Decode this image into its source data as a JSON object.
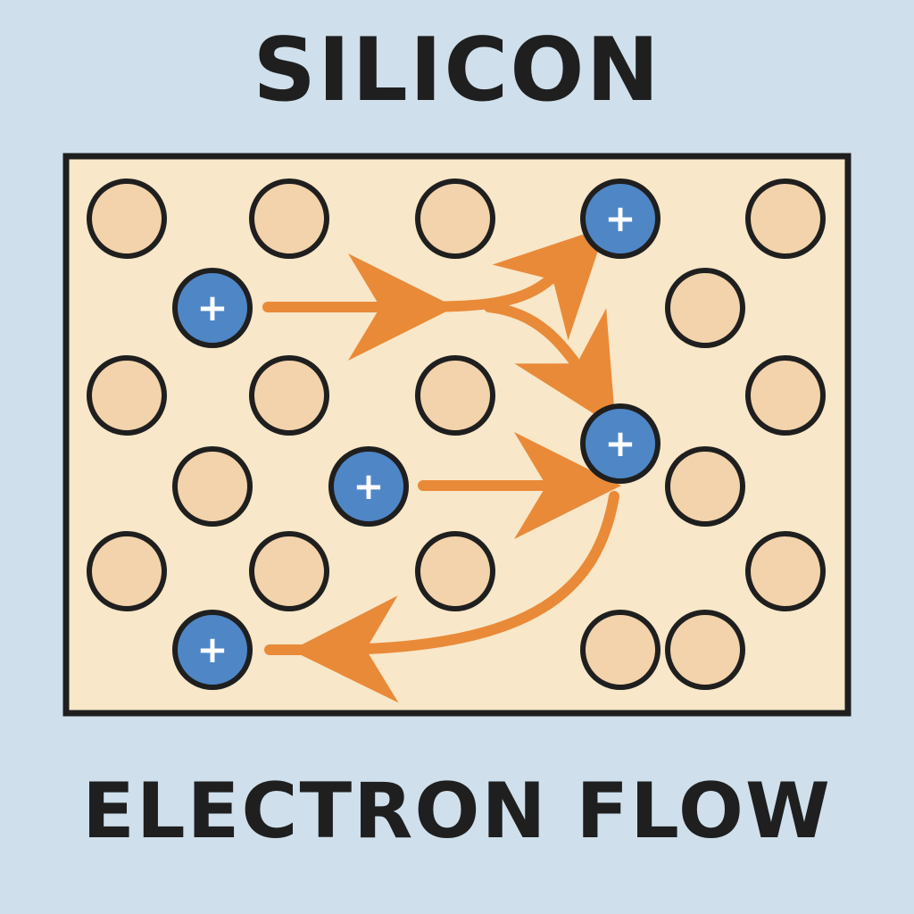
{
  "title": "SILICON",
  "subtitle": "ELECTRON FLOW",
  "lattice": {
    "hole_symbol": "+",
    "colors": {
      "background": "#cfe0ec",
      "panel": "#f8e7c8",
      "atom": "#f3d3ab",
      "hole": "#4f86c6",
      "arrow": "#e98a38",
      "outline": "#1f1f1f"
    }
  }
}
